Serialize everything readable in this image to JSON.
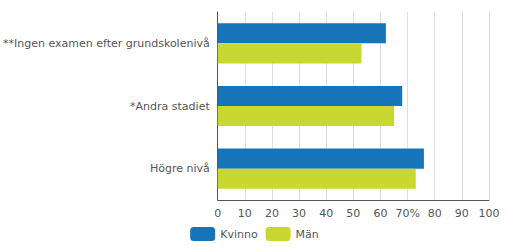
{
  "chart_data": {
    "type": "bar",
    "orientation": "horizontal",
    "categories": [
      "Högre nivå",
      "*Andra stadiet",
      "**Ingen examen efter grundskolenivå"
    ],
    "series": [
      {
        "name": "Kvinno",
        "color": "#1874B8",
        "values": [
          76,
          68,
          62
        ]
      },
      {
        "name": "Män",
        "color": "#C8D830",
        "values": [
          73,
          65,
          53
        ]
      }
    ],
    "xlim": [
      0,
      100
    ],
    "xticks": [
      0,
      10,
      20,
      30,
      40,
      50,
      60,
      {
        "value": 70,
        "label": "70%"
      },
      80,
      90,
      100
    ],
    "grid": true,
    "legend": "bottom"
  }
}
